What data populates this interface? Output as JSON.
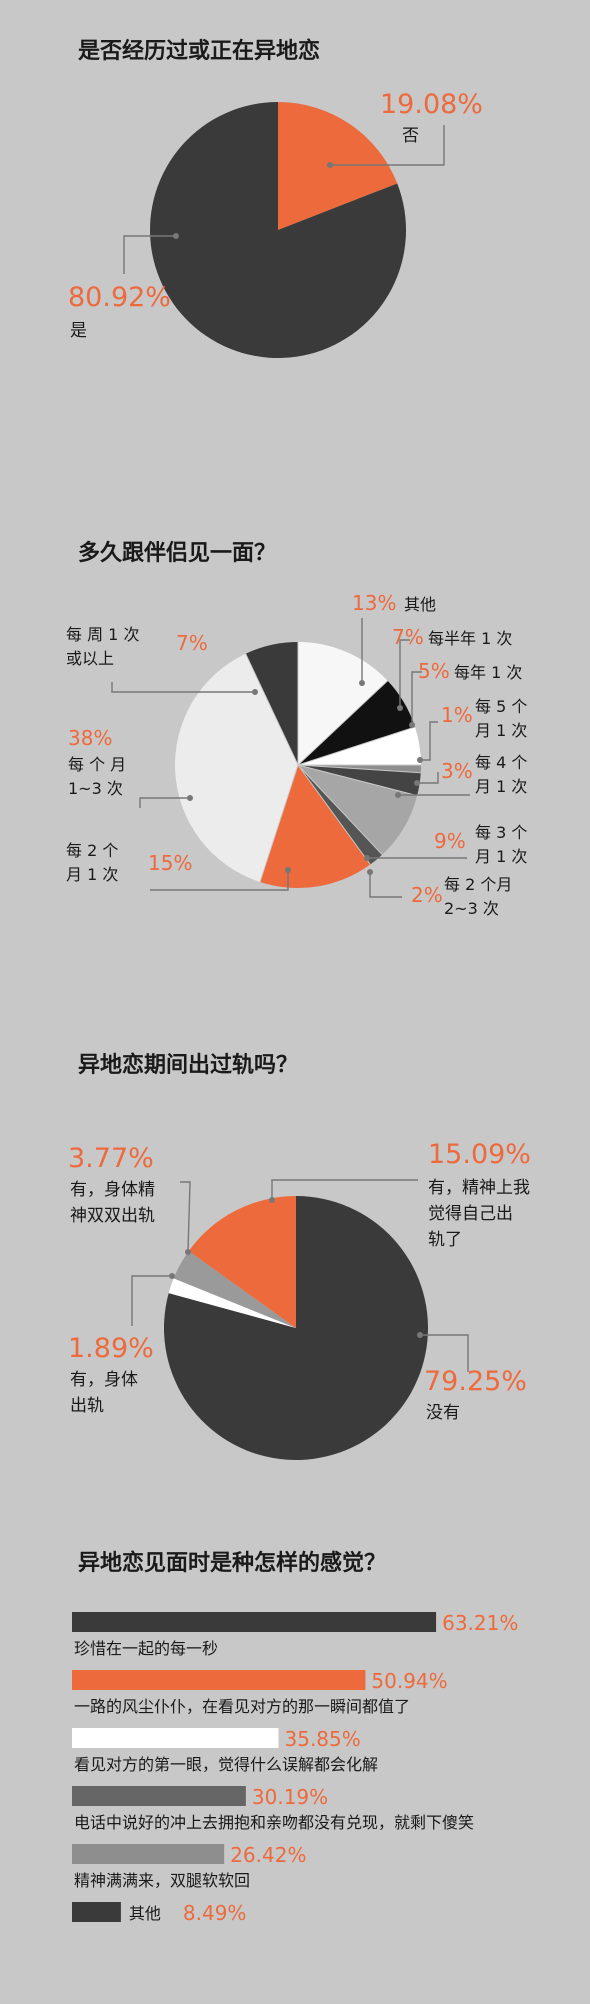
{
  "colors": {
    "background": "#c8c8c8",
    "dark": "#3a3a3a",
    "orange": "#ed6a3d",
    "white": "#f7f7f7",
    "lightgray": "#ececec",
    "black": "#111111",
    "gray": "#8e8e8e",
    "midgray": "#666666",
    "silver": "#a6a6a6"
  },
  "chart_data": [
    {
      "type": "pie",
      "title": "是否经历过或正在异地恋",
      "slices": [
        {
          "pct_label": "19.08%",
          "label": "否",
          "value": 19.08,
          "color": "#ed6a3d"
        },
        {
          "pct_label": "80.92%",
          "label": "是",
          "value": 80.92,
          "color": "#3a3a3a"
        }
      ]
    },
    {
      "type": "pie",
      "title": "多久跟伴侣见一面？",
      "slices": [
        {
          "pct_label": "13%",
          "label": [
            "其他"
          ],
          "value": 13,
          "color": "#f7f7f7"
        },
        {
          "pct_label": "7%",
          "label": [
            "每半年 1 次"
          ],
          "value": 7,
          "color": "#111111"
        },
        {
          "pct_label": "5%",
          "label": [
            "每年 1 次"
          ],
          "value": 5,
          "color": "#ffffff"
        },
        {
          "pct_label": "1%",
          "label": [
            "每 5 个",
            "月 1 次"
          ],
          "value": 1,
          "color": "#8e8e8e"
        },
        {
          "pct_label": "3%",
          "label": [
            "每 4 个",
            "月 1 次"
          ],
          "value": 3,
          "color": "#444444"
        },
        {
          "pct_label": "9%",
          "label": [
            "每 3 个",
            "月 1 次"
          ],
          "value": 9,
          "color": "#a6a6a6"
        },
        {
          "pct_label": "2%",
          "label": [
            "每 2 个月",
            "2~3 次"
          ],
          "value": 2,
          "color": "#555555"
        },
        {
          "pct_label": "15%",
          "label": [
            "每 2 个",
            "月 1 次"
          ],
          "value": 15,
          "color": "#ed6a3d"
        },
        {
          "pct_label": "38%",
          "label": [
            "每 个 月",
            "1~3 次"
          ],
          "value": 38,
          "color": "#ececec"
        },
        {
          "pct_label": "7%",
          "label": [
            "每 周 1 次",
            "或以上"
          ],
          "value": 7,
          "color": "#3a3a3a"
        }
      ]
    },
    {
      "type": "pie",
      "title": "异地恋期间出过轨吗？",
      "slices": [
        {
          "pct_label": "79.25%",
          "label": [
            "没有"
          ],
          "value": 79.25,
          "color": "#3a3a3a"
        },
        {
          "pct_label": "1.89%",
          "label": [
            "有，身体",
            "出轨"
          ],
          "value": 1.89,
          "color": "#ffffff"
        },
        {
          "pct_label": "3.77%",
          "label": [
            "有，身体精",
            "神双双出轨"
          ],
          "value": 3.77,
          "color": "#9a9a9a"
        },
        {
          "pct_label": "15.09%",
          "label": [
            "有，精神上我",
            "觉得自己出",
            "轨了"
          ],
          "value": 15.09,
          "color": "#ed6a3d"
        }
      ]
    },
    {
      "type": "bar",
      "title": "异地恋见面时是种怎样的感觉？",
      "xlim": [
        0,
        70
      ],
      "bars": [
        {
          "value": 63.21,
          "value_label": "63.21%",
          "label": "珍惜在一起的每一秒",
          "color": "#3a3a3a"
        },
        {
          "value": 50.94,
          "value_label": "50.94%",
          "label": "一路的风尘仆仆，在看见对方的那一瞬间都值了",
          "color": "#ed6a3d"
        },
        {
          "value": 35.85,
          "value_label": "35.85%",
          "label": "看见对方的第一眼，觉得什么误解都会化解",
          "color": "#ffffff"
        },
        {
          "value": 30.19,
          "value_label": "30.19%",
          "label": "电话中说好的冲上去拥抱和亲吻都没有兑现，就剩下傻笑",
          "color": "#666666"
        },
        {
          "value": 26.42,
          "value_label": "26.42%",
          "label": "精神满满来，双腿软软回",
          "color": "#8e8e8e"
        },
        {
          "value": 8.49,
          "value_label": "8.49%",
          "label": "其他",
          "color": "#3a3a3a",
          "label_position": "inline"
        }
      ]
    }
  ]
}
